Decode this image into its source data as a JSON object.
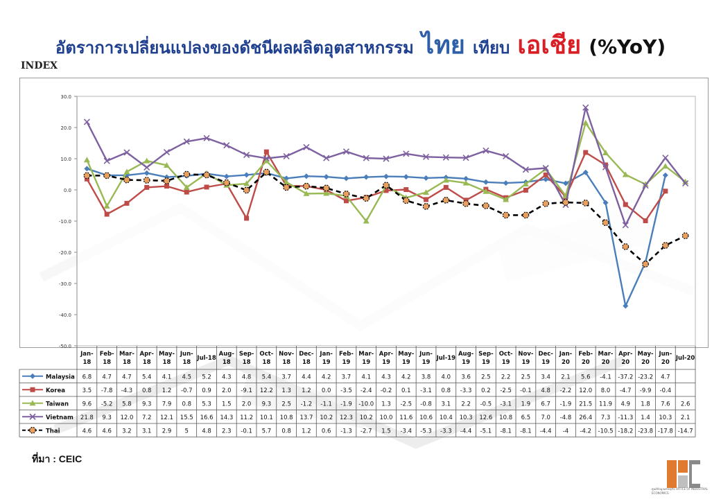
{
  "title": {
    "part1": "อัตราการเปลี่ยนแปลงของดัชนีผลผลิตอุตสาหกรรม",
    "part2": "ไทย",
    "part3": "เทียบ",
    "part4": "เอเชีย",
    "part5": "(%YoY)"
  },
  "index_label": "INDEX",
  "source": "ที่มา : CEIC",
  "logo": {
    "caption1": "ศูนย์ข้อมูลเศรษฐกิจ",
    "caption2": "OFFICE OF INDUSTRIAL ECONOMICS"
  },
  "colors": {
    "Malaysia": "#4a7ebb",
    "Korea": "#be4b48",
    "Taiwan": "#98b954",
    "Vietnam": "#7d60a0",
    "Thai": "#000000",
    "thai_marker": "#e8a060"
  },
  "chart_data": {
    "type": "line",
    "ylim": [
      -50,
      30
    ],
    "yticks": [
      "30.0",
      "20.0",
      "10.0",
      "0.0",
      "-10.0",
      "-20.0",
      "-30.0",
      "-40.0",
      "-50.0"
    ],
    "ytick_values": [
      30,
      20,
      10,
      0,
      -10,
      -20,
      -30,
      -40,
      -50
    ],
    "categories": [
      [
        "Jan-",
        "18"
      ],
      [
        "Feb-",
        "18"
      ],
      [
        "Mar-",
        "18"
      ],
      [
        "Apr-",
        "18"
      ],
      [
        "May-",
        "18"
      ],
      [
        "Jun-",
        "18"
      ],
      [
        "Jul-18",
        ""
      ],
      [
        "Aug-",
        "18"
      ],
      [
        "Sep-",
        "18"
      ],
      [
        "Oct-",
        "18"
      ],
      [
        "Nov-",
        "18"
      ],
      [
        "Dec-",
        "18"
      ],
      [
        "Jan-",
        "19"
      ],
      [
        "Feb-",
        "19"
      ],
      [
        "Mar-",
        "19"
      ],
      [
        "Apr-",
        "19"
      ],
      [
        "May-",
        "19"
      ],
      [
        "Jun-",
        "19"
      ],
      [
        "Jul-19",
        ""
      ],
      [
        "Aug-",
        "19"
      ],
      [
        "Sep-",
        "19"
      ],
      [
        "Oct-",
        "19"
      ],
      [
        "Nov-",
        "19"
      ],
      [
        "Dec-",
        "19"
      ],
      [
        "Jan-",
        "20"
      ],
      [
        "Feb-",
        "20"
      ],
      [
        "Mar-",
        "20"
      ],
      [
        "Apr-",
        "20"
      ],
      [
        "May-",
        "20"
      ],
      [
        "Jun-",
        "20"
      ],
      [
        "Jul-20",
        ""
      ]
    ],
    "series": [
      {
        "name": "Malaysia",
        "marker": "diamond",
        "values": [
          6.8,
          4.7,
          4.7,
          5.4,
          4.1,
          4.5,
          5.2,
          4.3,
          4.8,
          5.4,
          3.7,
          4.4,
          4.2,
          3.7,
          4.1,
          4.3,
          4.2,
          3.8,
          4.0,
          3.6,
          2.5,
          2.2,
          2.5,
          3.4,
          2.1,
          5.6,
          -4.1,
          -37.2,
          -23.2,
          4.7,
          null
        ],
        "labels": [
          "6.8",
          "4.7",
          "4.7",
          "5.4",
          "4.1",
          "4.5",
          "5.2",
          "4.3",
          "4.8",
          "5.4",
          "3.7",
          "4.4",
          "4.2",
          "3.7",
          "4.1",
          "4.3",
          "4.2",
          "3.8",
          "4.0",
          "3.6",
          "2.5",
          "2.2",
          "2.5",
          "3.4",
          "2.1",
          "5.6",
          "-4.1",
          "-37.2",
          "-23.2",
          "4.7",
          ""
        ]
      },
      {
        "name": "Korea",
        "marker": "square",
        "values": [
          3.5,
          -7.8,
          -4.3,
          0.8,
          1.2,
          -0.7,
          0.9,
          2.0,
          -9.1,
          12.2,
          1.3,
          1.2,
          0.0,
          -3.5,
          -2.4,
          -0.2,
          0.1,
          -3.1,
          0.8,
          -3.3,
          0.2,
          -2.5,
          -0.1,
          4.8,
          -2.2,
          12.0,
          8.0,
          -4.7,
          -9.9,
          -0.4,
          null
        ],
        "labels": [
          "3.5",
          "-7.8",
          "-4.3",
          "0.8",
          "1.2",
          "-0.7",
          "0.9",
          "2.0",
          "-9.1",
          "12.2",
          "1.3",
          "1.2",
          "0.0",
          "-3.5",
          "-2.4",
          "-0.2",
          "0.1",
          "-3.1",
          "0.8",
          "-3.3",
          "0.2",
          "-2.5",
          "-0.1",
          "4.8",
          "-2.2",
          "12.0",
          "8.0",
          "-4.7",
          "-9.9",
          "-0.4",
          ""
        ]
      },
      {
        "name": "Taiwan",
        "marker": "triangle",
        "values": [
          9.6,
          -5.2,
          5.8,
          9.3,
          7.9,
          0.8,
          5.3,
          1.5,
          2.0,
          9.3,
          2.5,
          -1.2,
          -1.1,
          -1.9,
          -10.0,
          1.3,
          -2.5,
          -0.8,
          3.1,
          2.2,
          -0.5,
          -3.1,
          1.9,
          6.7,
          -1.9,
          21.5,
          11.9,
          4.9,
          1.8,
          7.6,
          2.6
        ],
        "labels": [
          "9.6",
          "-5.2",
          "5.8",
          "9.3",
          "7.9",
          "0.8",
          "5.3",
          "1.5",
          "2.0",
          "9.3",
          "2.5",
          "-1.2",
          "-1.1",
          "-1.9",
          "-10.0",
          "1.3",
          "-2.5",
          "-0.8",
          "3.1",
          "2.2",
          "-0.5",
          "-3.1",
          "1.9",
          "6.7",
          "-1.9",
          "21.5",
          "11.9",
          "4.9",
          "1.8",
          "7.6",
          "2.6"
        ]
      },
      {
        "name": "Vietnam",
        "marker": "x",
        "values": [
          21.8,
          9.3,
          12.0,
          7.2,
          12.1,
          15.5,
          16.6,
          14.3,
          11.2,
          10.1,
          10.8,
          13.7,
          10.2,
          12.3,
          10.2,
          10.0,
          11.6,
          10.6,
          10.4,
          10.3,
          12.6,
          10.8,
          6.5,
          7.0,
          -4.8,
          26.4,
          7.3,
          -11.3,
          1.4,
          10.3,
          2.1
        ],
        "labels": [
          "21.8",
          "9.3",
          "12.0",
          "7.2",
          "12.1",
          "15.5",
          "16.6",
          "14.3",
          "11.2",
          "10.1",
          "10.8",
          "13.7",
          "10.2",
          "12.3",
          "10.2",
          "10.0",
          "11.6",
          "10.6",
          "10.4",
          "10.3",
          "12.6",
          "10.8",
          "6.5",
          "7.0",
          "-4.8",
          "26.4",
          "7.3",
          "-11.3",
          "1.4",
          "10.3",
          "2.1"
        ]
      },
      {
        "name": "Thai",
        "marker": "circle",
        "dashed": true,
        "values": [
          4.6,
          4.6,
          3.2,
          3.1,
          2.9,
          5,
          4.8,
          2.3,
          -0.1,
          5.7,
          0.8,
          1.2,
          0.6,
          -1.3,
          -2.7,
          1.5,
          -3.4,
          -5.3,
          -3.3,
          -4.4,
          -5.1,
          -8.1,
          -8.1,
          -4.4,
          -4,
          -4.2,
          -10.5,
          -18.2,
          -23.8,
          -17.8,
          -14.7
        ],
        "labels": [
          "4.6",
          "4.6",
          "3.2",
          "3.1",
          "2.9",
          "5",
          "4.8",
          "2.3",
          "-0.1",
          "5.7",
          "0.8",
          "1.2",
          "0.6",
          "-1.3",
          "-2.7",
          "1.5",
          "-3.4",
          "-5.3",
          "-3.3",
          "-4.4",
          "-5.1",
          "-8.1",
          "-8.1",
          "-4.4",
          "-4",
          "-4.2",
          "-10.5",
          "-18.2",
          "-23.8",
          "-17.8",
          "-14.7"
        ]
      }
    ]
  }
}
